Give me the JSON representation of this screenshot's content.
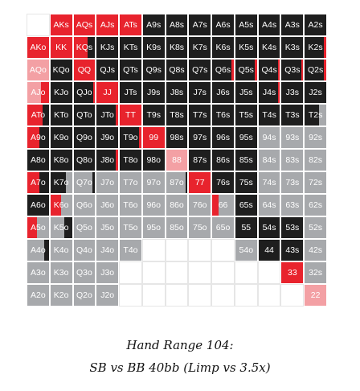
{
  "colors": {
    "raise": "#e8232d",
    "raise_light": "#f3a0a4",
    "limp": "#a7a9ac",
    "fold": "#ffffff",
    "dark": "#1e1e1e",
    "label_light": "#ffffff",
    "label_dark": "#111111"
  },
  "caption": {
    "line1": "Hand Range 104:",
    "line2": "SB vs BB 40bb (Limp vs 3.5x)"
  },
  "grid": {
    "rows": [
      [
        "",
        "AKs",
        "AQs",
        "AJs",
        "ATs",
        "A9s",
        "A8s",
        "A7s",
        "A6s",
        "A5s",
        "A4s",
        "A3s",
        "A2s"
      ],
      [
        "AKo",
        "KK",
        "KQs",
        "KJs",
        "KTs",
        "K9s",
        "K8s",
        "K7s",
        "K6s",
        "K5s",
        "K4s",
        "K3s",
        "K2s"
      ],
      [
        "AQo",
        "KQo",
        "QQ",
        "QJs",
        "QTs",
        "Q9s",
        "Q8s",
        "Q7s",
        "Q6s",
        "Q5s",
        "Q4s",
        "Q3s",
        "Q2s"
      ],
      [
        "AJo",
        "KJo",
        "QJo",
        "JJ",
        "JTs",
        "J9s",
        "J8s",
        "J7s",
        "J6s",
        "J5s",
        "J4s",
        "J3s",
        "J2s"
      ],
      [
        "ATo",
        "KTo",
        "QTo",
        "JTo",
        "TT",
        "T9s",
        "T8s",
        "T7s",
        "T6s",
        "T5s",
        "T4s",
        "T3s",
        "T2s"
      ],
      [
        "A9o",
        "K9o",
        "Q9o",
        "J9o",
        "T9o",
        "99",
        "98s",
        "97s",
        "96s",
        "95s",
        "94s",
        "93s",
        "92s"
      ],
      [
        "A8o",
        "K8o",
        "Q8o",
        "J8o",
        "T8o",
        "98o",
        "88",
        "87s",
        "86s",
        "85s",
        "84s",
        "83s",
        "82s"
      ],
      [
        "A7o",
        "K7o",
        "Q7o",
        "J7o",
        "T7o",
        "97o",
        "87o",
        "77",
        "76s",
        "75s",
        "74s",
        "73s",
        "72s"
      ],
      [
        "A6o",
        "K6o",
        "Q6o",
        "J6o",
        "T6o",
        "96o",
        "86o",
        "76o",
        "66",
        "65s",
        "64s",
        "63s",
        "62s"
      ],
      [
        "A5o",
        "K5o",
        "Q5o",
        "J5o",
        "T5o",
        "95o",
        "85o",
        "75o",
        "65o",
        "55",
        "54s",
        "53s",
        "52s"
      ],
      [
        "A4o",
        "K4o",
        "Q4o",
        "J4o",
        "T4o",
        "",
        "",
        "",
        "",
        "54o",
        "44",
        "43s",
        "42s"
      ],
      [
        "A3o",
        "K3o",
        "Q3o",
        "J3o",
        "",
        "",
        "",
        "",
        "",
        "",
        "",
        "33",
        "32s"
      ],
      [
        "A2o",
        "K2o",
        "Q2o",
        "J2o",
        "",
        "",
        "",
        "",
        "",
        "",
        "",
        "",
        "22"
      ]
    ],
    "styles": [
      [
        "f",
        "r",
        "r",
        "r",
        "r",
        "d",
        "d",
        "d",
        "d",
        "d",
        "d",
        "d",
        "d"
      ],
      [
        "r",
        "r",
        "r|d:0.35",
        "d",
        "d",
        "d",
        "d",
        "d",
        "d",
        "d",
        "d",
        "d",
        "d|r:0.1"
      ],
      [
        "pl",
        "d",
        "r",
        "d",
        "d",
        "d",
        "d",
        "d",
        "d|r:0.1",
        "d|r:0.1",
        "d|r:0.1",
        "d|r:0.1",
        "d|r:0.12"
      ],
      [
        "pl|r:0.35",
        "d",
        "d|r:0.1",
        "r",
        "d",
        "d",
        "d",
        "d",
        "d",
        "d",
        "d|r:0.1",
        "d",
        "d"
      ],
      [
        "r|d:0.3",
        "d",
        "d",
        "d|r:0.1",
        "r",
        "d",
        "d",
        "d",
        "d",
        "d",
        "d",
        "d",
        "d|l:0.35"
      ],
      [
        "r|d:0.45",
        "d",
        "d",
        "d",
        "d|r:0.1",
        "r",
        "d",
        "d",
        "d",
        "d",
        "l",
        "l",
        "l"
      ],
      [
        "d",
        "d",
        "d",
        "d|r:0.1",
        "d",
        "d",
        "pl",
        "d",
        "d",
        "d",
        "l",
        "l",
        "l"
      ],
      [
        "r|d:0.45",
        "d|l:0.3",
        "l|d:0.12",
        "l",
        "l",
        "l",
        "l|d:0.1",
        "r",
        "d",
        "d",
        "l",
        "l",
        "l"
      ],
      [
        "d",
        "r|l:0.5",
        "l",
        "l",
        "l",
        "l",
        "l",
        "l",
        "r|l:0.7",
        "d",
        "l",
        "l",
        "l"
      ],
      [
        "r|l:0.55",
        "l|d:0.35",
        "l",
        "l",
        "l",
        "l",
        "l",
        "l",
        "l",
        "d",
        "d",
        "d",
        "l"
      ],
      [
        "l|d:0.2",
        "l",
        "l",
        "l",
        "l",
        "f",
        "f",
        "f",
        "f",
        "l",
        "d",
        "d",
        "l"
      ],
      [
        "l",
        "l",
        "l",
        "l",
        "f",
        "f",
        "f",
        "f",
        "f",
        "f",
        "f",
        "r",
        "l"
      ],
      [
        "l",
        "l",
        "l",
        "l",
        "f",
        "f",
        "f",
        "f",
        "f",
        "f",
        "f",
        "f",
        "pl"
      ]
    ]
  }
}
